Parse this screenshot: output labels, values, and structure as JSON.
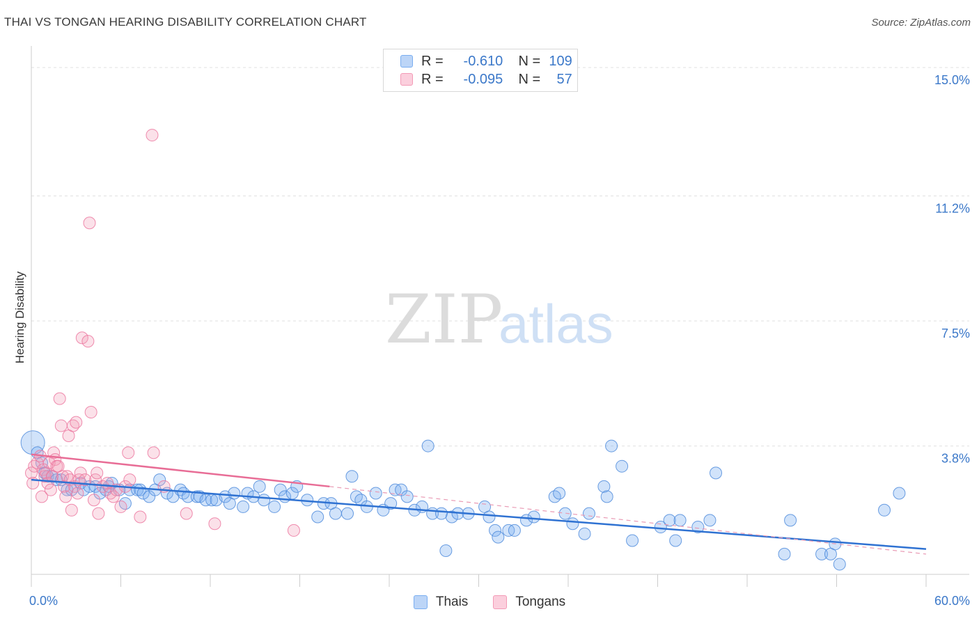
{
  "title": "THAI VS TONGAN HEARING DISABILITY CORRELATION CHART",
  "source": "Source: ZipAtlas.com",
  "watermark": {
    "zip": "ZIP",
    "atlas": "atlas"
  },
  "legend_stats": [
    {
      "r_label": "R =",
      "r_value": "-0.610",
      "n_label": "N =",
      "n_value": "109",
      "color": "#7aaef0"
    },
    {
      "r_label": "R =",
      "r_value": "-0.095",
      "n_label": "N =",
      "n_value": "57",
      "color": "#f39ab6"
    }
  ],
  "legend_bottom": [
    {
      "label": "Thais",
      "color": "#7aaef0"
    },
    {
      "label": "Tongans",
      "color": "#f39ab6"
    }
  ],
  "chart_data": {
    "type": "scatter",
    "title": "THAI VS TONGAN HEARING DISABILITY CORRELATION CHART",
    "xlabel": "",
    "ylabel": "Hearing Disability",
    "xlim": [
      0,
      60
    ],
    "ylim": [
      0,
      15
    ],
    "x_tick_labels": [
      "0.0%",
      "60.0%"
    ],
    "y_ticks": [
      3.8,
      7.5,
      11.2,
      15.0
    ],
    "y_tick_labels": [
      "3.8%",
      "7.5%",
      "11.2%",
      "15.0%"
    ],
    "grid": true,
    "series": [
      {
        "name": "Thais",
        "color": "#5b93e0",
        "trend": {
          "x0": 0,
          "y0": 2.8,
          "x1": 60,
          "y1": 0.75,
          "dashed_from": null
        },
        "points": [
          [
            0.1,
            3.9
          ],
          [
            0.4,
            3.6
          ],
          [
            0.7,
            3.3
          ],
          [
            0.9,
            3.0
          ],
          [
            1.1,
            2.9
          ],
          [
            1.4,
            2.9
          ],
          [
            1.7,
            2.8
          ],
          [
            2.0,
            2.8
          ],
          [
            2.4,
            2.5
          ],
          [
            2.7,
            2.5
          ],
          [
            3.3,
            2.7
          ],
          [
            3.5,
            2.5
          ],
          [
            3.9,
            2.6
          ],
          [
            4.3,
            2.6
          ],
          [
            4.6,
            2.4
          ],
          [
            5.0,
            2.5
          ],
          [
            5.2,
            2.6
          ],
          [
            5.4,
            2.7
          ],
          [
            5.9,
            2.5
          ],
          [
            6.3,
            2.1
          ],
          [
            6.6,
            2.5
          ],
          [
            7.1,
            2.5
          ],
          [
            7.3,
            2.5
          ],
          [
            7.5,
            2.4
          ],
          [
            7.9,
            2.3
          ],
          [
            8.3,
            2.5
          ],
          [
            8.6,
            2.8
          ],
          [
            9.1,
            2.4
          ],
          [
            9.5,
            2.3
          ],
          [
            10.0,
            2.5
          ],
          [
            10.2,
            2.4
          ],
          [
            10.5,
            2.3
          ],
          [
            11.1,
            2.3
          ],
          [
            11.3,
            2.3
          ],
          [
            11.7,
            2.2
          ],
          [
            12.1,
            2.2
          ],
          [
            12.4,
            2.2
          ],
          [
            13.0,
            2.3
          ],
          [
            13.3,
            2.1
          ],
          [
            13.6,
            2.4
          ],
          [
            14.2,
            2.0
          ],
          [
            14.5,
            2.4
          ],
          [
            14.9,
            2.3
          ],
          [
            15.3,
            2.6
          ],
          [
            15.6,
            2.2
          ],
          [
            16.3,
            2.0
          ],
          [
            16.7,
            2.5
          ],
          [
            17.0,
            2.3
          ],
          [
            17.5,
            2.4
          ],
          [
            17.8,
            2.6
          ],
          [
            18.5,
            2.2
          ],
          [
            19.2,
            1.7
          ],
          [
            19.6,
            2.1
          ],
          [
            20.1,
            2.1
          ],
          [
            20.4,
            1.8
          ],
          [
            21.2,
            1.8
          ],
          [
            21.5,
            2.9
          ],
          [
            21.8,
            2.3
          ],
          [
            22.1,
            2.2
          ],
          [
            22.5,
            2.0
          ],
          [
            23.1,
            2.4
          ],
          [
            23.6,
            1.9
          ],
          [
            24.1,
            2.1
          ],
          [
            24.4,
            2.5
          ],
          [
            24.8,
            2.5
          ],
          [
            25.2,
            2.3
          ],
          [
            25.7,
            1.9
          ],
          [
            26.2,
            2.0
          ],
          [
            26.6,
            3.8
          ],
          [
            26.9,
            1.8
          ],
          [
            27.5,
            1.8
          ],
          [
            27.8,
            0.7
          ],
          [
            28.2,
            1.7
          ],
          [
            28.6,
            1.8
          ],
          [
            29.3,
            1.8
          ],
          [
            30.4,
            2.0
          ],
          [
            30.7,
            1.7
          ],
          [
            31.1,
            1.3
          ],
          [
            31.3,
            1.1
          ],
          [
            32.0,
            1.3
          ],
          [
            32.4,
            1.3
          ],
          [
            33.2,
            1.6
          ],
          [
            33.7,
            1.7
          ],
          [
            35.1,
            2.3
          ],
          [
            35.4,
            2.4
          ],
          [
            35.8,
            1.8
          ],
          [
            36.3,
            1.5
          ],
          [
            37.1,
            1.2
          ],
          [
            37.4,
            1.8
          ],
          [
            38.4,
            2.6
          ],
          [
            38.6,
            2.3
          ],
          [
            38.9,
            3.8
          ],
          [
            39.6,
            3.2
          ],
          [
            40.3,
            1.0
          ],
          [
            42.2,
            1.4
          ],
          [
            42.8,
            1.6
          ],
          [
            43.2,
            1.0
          ],
          [
            43.5,
            1.6
          ],
          [
            44.7,
            1.4
          ],
          [
            45.5,
            1.6
          ],
          [
            45.9,
            3.0
          ],
          [
            50.5,
            0.6
          ],
          [
            50.9,
            1.6
          ],
          [
            53.0,
            0.6
          ],
          [
            53.6,
            0.6
          ],
          [
            53.9,
            0.9
          ],
          [
            54.2,
            0.3
          ],
          [
            57.2,
            1.9
          ],
          [
            58.2,
            2.4
          ]
        ]
      },
      {
        "name": "Tongans",
        "color": "#f08aac",
        "trend": {
          "x0": 0,
          "y0": 3.55,
          "x1": 20,
          "y1": 2.6,
          "dashed_to_x": 60,
          "dashed_to_y": 0.6
        },
        "points": [
          [
            0.0,
            3.0
          ],
          [
            0.1,
            2.7
          ],
          [
            0.2,
            3.2
          ],
          [
            0.4,
            3.3
          ],
          [
            0.6,
            3.5
          ],
          [
            0.7,
            2.3
          ],
          [
            0.8,
            3.1
          ],
          [
            0.9,
            2.9
          ],
          [
            1.0,
            3.0
          ],
          [
            1.1,
            2.7
          ],
          [
            1.2,
            3.3
          ],
          [
            1.3,
            2.5
          ],
          [
            1.4,
            2.9
          ],
          [
            1.5,
            3.6
          ],
          [
            1.6,
            3.4
          ],
          [
            1.7,
            3.2
          ],
          [
            1.8,
            3.2
          ],
          [
            1.9,
            5.2
          ],
          [
            2.0,
            4.4
          ],
          [
            2.1,
            2.9
          ],
          [
            2.2,
            2.6
          ],
          [
            2.3,
            2.3
          ],
          [
            2.4,
            2.9
          ],
          [
            2.5,
            4.1
          ],
          [
            2.6,
            2.8
          ],
          [
            2.7,
            1.9
          ],
          [
            2.8,
            4.4
          ],
          [
            2.9,
            2.6
          ],
          [
            3.0,
            4.5
          ],
          [
            3.1,
            2.4
          ],
          [
            3.2,
            2.8
          ],
          [
            3.3,
            3.0
          ],
          [
            3.4,
            7.0
          ],
          [
            3.6,
            2.8
          ],
          [
            3.8,
            6.9
          ],
          [
            3.9,
            10.4
          ],
          [
            4.0,
            4.8
          ],
          [
            4.2,
            2.2
          ],
          [
            4.3,
            2.8
          ],
          [
            4.4,
            3.0
          ],
          [
            4.5,
            1.8
          ],
          [
            4.8,
            2.6
          ],
          [
            5.1,
            2.7
          ],
          [
            5.3,
            2.4
          ],
          [
            5.5,
            2.3
          ],
          [
            5.7,
            2.5
          ],
          [
            6.0,
            2.0
          ],
          [
            6.3,
            2.6
          ],
          [
            6.5,
            3.6
          ],
          [
            6.6,
            2.8
          ],
          [
            7.3,
            1.7
          ],
          [
            8.1,
            13.0
          ],
          [
            8.2,
            3.6
          ],
          [
            8.9,
            2.6
          ],
          [
            10.4,
            1.8
          ],
          [
            12.3,
            1.5
          ],
          [
            17.6,
            1.3
          ]
        ]
      }
    ]
  }
}
